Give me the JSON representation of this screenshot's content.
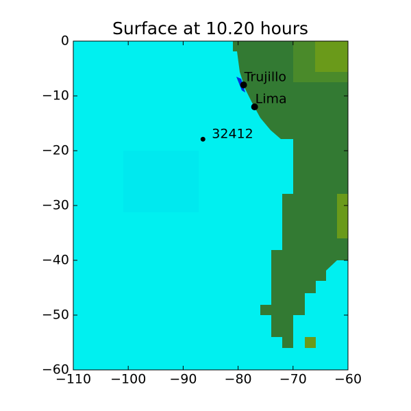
{
  "chart_data": {
    "type": "scatter",
    "title": "Surface at 10.20 hours",
    "x": [
      -79,
      -77,
      -86.4
    ],
    "values": [
      -8,
      -12,
      -17.9
    ],
    "point_labels": [
      "Trujillo",
      "Lima",
      "32412"
    ],
    "color": "#000000",
    "xlim": [
      -110,
      -60
    ],
    "ylim": [
      -60,
      0
    ],
    "xticks": [
      {
        "value": -110,
        "label": "−110"
      },
      {
        "value": -100,
        "label": "−100"
      },
      {
        "value": -90,
        "label": "−90"
      },
      {
        "value": -80,
        "label": "−80"
      },
      {
        "value": -70,
        "label": "−70"
      },
      {
        "value": -60,
        "label": "−60"
      }
    ],
    "yticks": [
      0,
      {
        "value": -10,
        "label": "−10"
      },
      {
        "value": -20,
        "label": "−20"
      },
      {
        "value": -30,
        "label": "−30"
      },
      {
        "value": -40,
        "label": "−40"
      },
      {
        "value": -50,
        "label": "−50"
      },
      {
        "value": -60,
        "label": "−60"
      }
    ]
  }
}
